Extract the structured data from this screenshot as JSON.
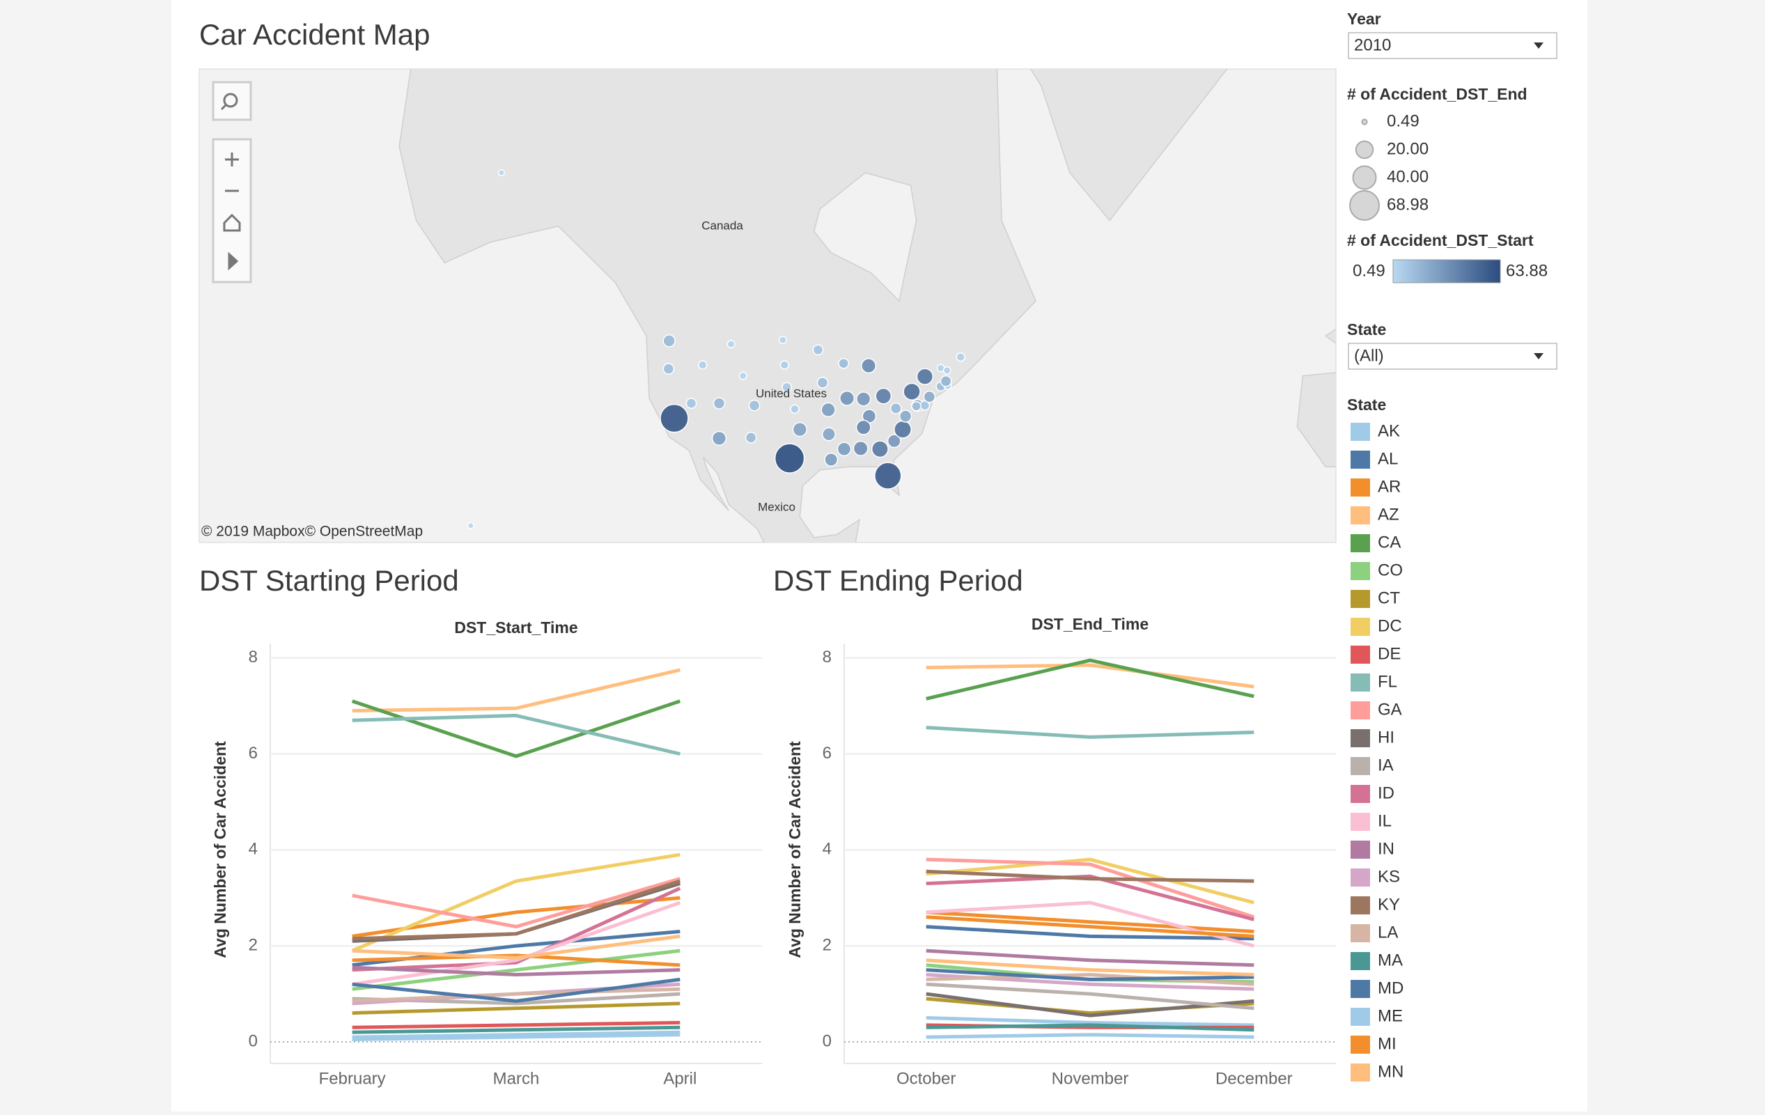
{
  "chart_data": [
    {
      "type": "map",
      "title": "Car Accident Map",
      "labels": [
        "Canada",
        "United States",
        "Mexico"
      ],
      "attribution": "© 2019 Mapbox© OpenStreetMap",
      "size_legend": {
        "title": "# of Accident_DST_End",
        "values": [
          0.49,
          {
            "value": 20,
            "label": "20.00"
          },
          {
            "value": 40,
            "label": "40.00"
          },
          68.98
        ]
      },
      "color_legend": {
        "title": "# of Accident_DST_Start",
        "range": [
          0.49,
          63.88
        ],
        "colors": [
          "#b9d9f2",
          "#2b4c7e"
        ]
      },
      "points": [
        {
          "lon": -120.5,
          "lat": 47.4,
          "size": 8,
          "value": 15
        },
        {
          "lon": -120.6,
          "lat": 43.9,
          "size": 6,
          "value": 12
        },
        {
          "lon": -119.6,
          "lat": 37.2,
          "size": 62,
          "value": 60
        },
        {
          "lon": -116.6,
          "lat": 39.3,
          "size": 5,
          "value": 10
        },
        {
          "lon": -114.6,
          "lat": 44.4,
          "size": 3,
          "value": 5
        },
        {
          "lon": -109.6,
          "lat": 47,
          "size": 2,
          "value": 3
        },
        {
          "lon": -107.5,
          "lat": 43,
          "size": 2,
          "value": 3
        },
        {
          "lon": -111.7,
          "lat": 39.3,
          "size": 7,
          "value": 16
        },
        {
          "lon": -111.7,
          "lat": 34.3,
          "size": 12,
          "value": 26
        },
        {
          "lon": -105.5,
          "lat": 39,
          "size": 6,
          "value": 12
        },
        {
          "lon": -106.1,
          "lat": 34.4,
          "size": 6,
          "value": 14
        },
        {
          "lon": -99.3,
          "lat": 31.3,
          "size": 68.98,
          "value": 63.88
        },
        {
          "lon": -100.5,
          "lat": 47.5,
          "size": 2,
          "value": 3
        },
        {
          "lon": -100.2,
          "lat": 44.4,
          "size": 3,
          "value": 6
        },
        {
          "lon": -99.8,
          "lat": 41.5,
          "size": 4,
          "value": 8
        },
        {
          "lon": -98.4,
          "lat": 38.5,
          "size": 3,
          "value": 6
        },
        {
          "lon": -97.5,
          "lat": 35.6,
          "size": 12,
          "value": 25
        },
        {
          "lon": -94.3,
          "lat": 46.3,
          "size": 5,
          "value": 10
        },
        {
          "lon": -93.5,
          "lat": 42.1,
          "size": 6,
          "value": 14
        },
        {
          "lon": -92.5,
          "lat": 38.4,
          "size": 12,
          "value": 28
        },
        {
          "lon": -92.4,
          "lat": 34.9,
          "size": 10,
          "value": 24
        },
        {
          "lon": -92,
          "lat": 31.1,
          "size": 10,
          "value": 28
        },
        {
          "lon": -89.8,
          "lat": 44.6,
          "size": 5,
          "value": 14
        },
        {
          "lon": -89.2,
          "lat": 40,
          "size": 13,
          "value": 32
        },
        {
          "lon": -85.4,
          "lat": 44.3,
          "size": 13,
          "value": 36
        },
        {
          "lon": -86.3,
          "lat": 39.9,
          "size": 12,
          "value": 30
        },
        {
          "lon": -82.8,
          "lat": 40.3,
          "size": 16,
          "value": 42
        },
        {
          "lon": -85.3,
          "lat": 37.5,
          "size": 11,
          "value": 32
        },
        {
          "lon": -86.3,
          "lat": 35.9,
          "size": 13,
          "value": 38
        },
        {
          "lon": -89.7,
          "lat": 32.7,
          "size": 11,
          "value": 28
        },
        {
          "lon": -86.8,
          "lat": 32.8,
          "size": 13,
          "value": 34
        },
        {
          "lon": -83.4,
          "lat": 32.7,
          "size": 18,
          "value": 44
        },
        {
          "lon": -82,
          "lat": 28.6,
          "size": 55,
          "value": 58
        },
        {
          "lon": -80.9,
          "lat": 33.9,
          "size": 10,
          "value": 30
        },
        {
          "lon": -79.4,
          "lat": 35.6,
          "size": 20,
          "value": 46
        },
        {
          "lon": -78.9,
          "lat": 37.5,
          "size": 8,
          "value": 22
        },
        {
          "lon": -80.6,
          "lat": 38.6,
          "size": 6,
          "value": 15
        },
        {
          "lon": -77.8,
          "lat": 40.9,
          "size": 19,
          "value": 48
        },
        {
          "lon": -75.5,
          "lat": 42.9,
          "size": 17,
          "value": 46
        },
        {
          "lon": -76.8,
          "lat": 39,
          "size": 8,
          "value": 22
        },
        {
          "lon": -75.5,
          "lat": 39,
          "size": 4,
          "value": 10
        },
        {
          "lon": -74.7,
          "lat": 40.2,
          "size": 7,
          "value": 22
        },
        {
          "lon": -72.7,
          "lat": 41.6,
          "size": 4,
          "value": 14
        },
        {
          "lon": -71.5,
          "lat": 41.7,
          "size": 2,
          "value": 5
        },
        {
          "lon": -71.8,
          "lat": 42.3,
          "size": 6,
          "value": 18
        },
        {
          "lon": -72.7,
          "lat": 44,
          "size": 2,
          "value": 4
        },
        {
          "lon": -71.6,
          "lat": 43.7,
          "size": 2,
          "value": 4
        },
        {
          "lon": -69.2,
          "lat": 45.4,
          "size": 3,
          "value": 5
        },
        {
          "lon": -77,
          "lat": 38.9,
          "size": 4,
          "value": 12
        },
        {
          "lon": -150,
          "lat": 64,
          "size": 1,
          "value": 2
        },
        {
          "lon": -155.4,
          "lat": 20.5,
          "size": 1,
          "value": 2
        }
      ]
    },
    {
      "type": "line",
      "title": "DST Starting Period",
      "x_label": "DST_Start_Time",
      "y_label": "Avg Number of Car Accident",
      "legend_title": "State",
      "categories": [
        "February",
        "March",
        "April"
      ],
      "ylim": [
        -0.45,
        8.3
      ],
      "yticks": [
        0,
        2,
        4,
        6,
        8
      ],
      "grid": true,
      "series": [
        {
          "name": "AK",
          "color": "#a0cbe8",
          "values": [
            0.1,
            0.15,
            0.2
          ]
        },
        {
          "name": "AL",
          "color": "#4e79a7",
          "values": [
            1.6,
            2.0,
            2.3
          ]
        },
        {
          "name": "AR",
          "color": "#f28e2b",
          "values": [
            2.2,
            2.7,
            3.0
          ]
        },
        {
          "name": "AZ",
          "color": "#ffbe7d",
          "values": [
            6.9,
            6.95,
            7.75
          ]
        },
        {
          "name": "CA",
          "color": "#59a14f",
          "values": [
            7.1,
            5.95,
            7.1
          ]
        },
        {
          "name": "CO",
          "color": "#8cd17d",
          "values": [
            1.1,
            1.5,
            1.9
          ]
        },
        {
          "name": "CT",
          "color": "#b6992d",
          "values": [
            0.6,
            0.7,
            0.8
          ]
        },
        {
          "name": "DC",
          "color": "#f1ce63",
          "values": [
            1.9,
            3.35,
            3.9
          ]
        },
        {
          "name": "DE",
          "color": "#e15759",
          "values": [
            0.3,
            0.35,
            0.4
          ]
        },
        {
          "name": "FL",
          "color": "#86bcb6",
          "values": [
            6.7,
            6.8,
            6.0
          ]
        },
        {
          "name": "GA",
          "color": "#ff9d9a",
          "values": [
            3.05,
            2.4,
            3.4
          ]
        },
        {
          "name": "HI",
          "color": "#79706e",
          "values": [
            2.1,
            2.25,
            3.3
          ]
        },
        {
          "name": "IA",
          "color": "#bab0ac",
          "values": [
            0.9,
            0.8,
            1.0
          ]
        },
        {
          "name": "ID",
          "color": "#d37295",
          "values": [
            1.5,
            1.65,
            3.2
          ]
        },
        {
          "name": "IL",
          "color": "#fabfd2",
          "values": [
            1.2,
            1.7,
            2.9
          ]
        },
        {
          "name": "IN",
          "color": "#b07aa1",
          "values": [
            1.55,
            1.4,
            1.5
          ]
        },
        {
          "name": "KS",
          "color": "#d4a6c8",
          "values": [
            0.8,
            1.0,
            1.2
          ]
        },
        {
          "name": "KY",
          "color": "#9d7660",
          "values": [
            2.15,
            2.25,
            3.35
          ]
        },
        {
          "name": "LA",
          "color": "#d7b5a6",
          "values": [
            0.85,
            1.0,
            1.1
          ]
        },
        {
          "name": "MA",
          "color": "#499894",
          "values": [
            0.2,
            0.25,
            0.3
          ]
        },
        {
          "name": "MD",
          "color": "#4e79a7",
          "values": [
            1.2,
            0.85,
            1.3
          ]
        },
        {
          "name": "ME",
          "color": "#a0cbe8",
          "values": [
            0.05,
            0.1,
            0.15
          ]
        },
        {
          "name": "MI",
          "color": "#f28e2b",
          "values": [
            1.7,
            1.8,
            1.6
          ]
        },
        {
          "name": "MN",
          "color": "#ffbe7d",
          "values": [
            1.9,
            1.75,
            2.2
          ]
        }
      ]
    },
    {
      "type": "line",
      "title": "DST Ending Period",
      "x_label": "DST_End_Time",
      "y_label": "Avg Number of Car Accident",
      "categories": [
        "October",
        "November",
        "December"
      ],
      "ylim": [
        -0.45,
        8.3
      ],
      "yticks": [
        0,
        2,
        4,
        6,
        8
      ],
      "grid": true,
      "series": [
        {
          "name": "AK",
          "color": "#a0cbe8",
          "values": [
            0.5,
            0.4,
            0.35
          ]
        },
        {
          "name": "AL",
          "color": "#4e79a7",
          "values": [
            2.4,
            2.2,
            2.15
          ]
        },
        {
          "name": "AR",
          "color": "#f28e2b",
          "values": [
            2.7,
            2.5,
            2.3
          ]
        },
        {
          "name": "AZ",
          "color": "#ffbe7d",
          "values": [
            7.8,
            7.85,
            7.4
          ]
        },
        {
          "name": "CA",
          "color": "#59a14f",
          "values": [
            7.15,
            7.95,
            7.2
          ]
        },
        {
          "name": "CO",
          "color": "#8cd17d",
          "values": [
            1.6,
            1.3,
            1.25
          ]
        },
        {
          "name": "CT",
          "color": "#b6992d",
          "values": [
            0.9,
            0.6,
            0.8
          ]
        },
        {
          "name": "DC",
          "color": "#f1ce63",
          "values": [
            3.5,
            3.8,
            2.9
          ]
        },
        {
          "name": "DE",
          "color": "#e15759",
          "values": [
            0.35,
            0.3,
            0.3
          ]
        },
        {
          "name": "FL",
          "color": "#86bcb6",
          "values": [
            6.55,
            6.35,
            6.45
          ]
        },
        {
          "name": "GA",
          "color": "#ff9d9a",
          "values": [
            3.8,
            3.7,
            2.6
          ]
        },
        {
          "name": "HI",
          "color": "#79706e",
          "values": [
            1.0,
            0.55,
            0.85
          ]
        },
        {
          "name": "IA",
          "color": "#bab0ac",
          "values": [
            1.2,
            1.0,
            0.7
          ]
        },
        {
          "name": "ID",
          "color": "#d37295",
          "values": [
            3.3,
            3.45,
            2.55
          ]
        },
        {
          "name": "IL",
          "color": "#fabfd2",
          "values": [
            2.7,
            2.9,
            2.0
          ]
        },
        {
          "name": "IN",
          "color": "#b07aa1",
          "values": [
            1.9,
            1.7,
            1.6
          ]
        },
        {
          "name": "KS",
          "color": "#d4a6c8",
          "values": [
            1.4,
            1.2,
            1.1
          ]
        },
        {
          "name": "KY",
          "color": "#9d7660",
          "values": [
            3.55,
            3.4,
            3.35
          ]
        },
        {
          "name": "LA",
          "color": "#d7b5a6",
          "values": [
            1.3,
            1.4,
            1.2
          ]
        },
        {
          "name": "MA",
          "color": "#499894",
          "values": [
            0.3,
            0.35,
            0.25
          ]
        },
        {
          "name": "MD",
          "color": "#4e79a7",
          "values": [
            1.5,
            1.3,
            1.35
          ]
        },
        {
          "name": "ME",
          "color": "#a0cbe8",
          "values": [
            0.1,
            0.15,
            0.1
          ]
        },
        {
          "name": "MI",
          "color": "#f28e2b",
          "values": [
            2.6,
            2.4,
            2.2
          ]
        },
        {
          "name": "MN",
          "color": "#ffbe7d",
          "values": [
            1.7,
            1.5,
            1.4
          ]
        }
      ]
    }
  ],
  "filters": [
    {
      "label": "Year",
      "value": "2010"
    },
    {
      "label": "State",
      "value": "(All)"
    }
  ]
}
